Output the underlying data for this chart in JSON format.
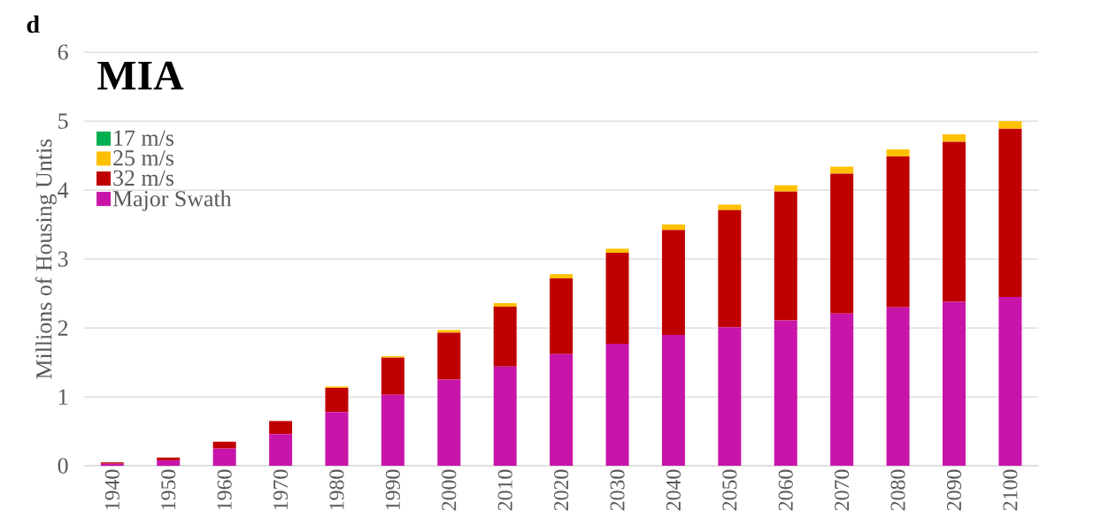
{
  "chart_data": {
    "type": "bar",
    "title": "MIA",
    "ylabel": "Millions of Housing Untis",
    "annotations": [
      "d"
    ],
    "categories": [
      "1940",
      "1950",
      "1960",
      "1970",
      "1980",
      "1990",
      "2000",
      "2010",
      "2020",
      "2030",
      "2040",
      "2050",
      "2060",
      "2070",
      "2080",
      "2090",
      "2100"
    ],
    "stacked": true,
    "series": [
      {
        "name": "Major Swath",
        "color": "#c814a8",
        "values": [
          0.03,
          0.08,
          0.25,
          0.46,
          0.78,
          1.03,
          1.25,
          1.44,
          1.62,
          1.77,
          1.9,
          2.01,
          2.11,
          2.21,
          2.3,
          2.38,
          2.45
        ]
      },
      {
        "name": "32 m/s",
        "color": "#c00000",
        "values": [
          0.02,
          0.04,
          0.1,
          0.19,
          0.35,
          0.54,
          0.68,
          0.87,
          1.1,
          1.32,
          1.52,
          1.7,
          1.87,
          2.03,
          2.19,
          2.32,
          2.44
        ]
      },
      {
        "name": "25 m/s",
        "color": "#ffc000",
        "values": [
          0,
          0,
          0,
          0,
          0.02,
          0.02,
          0.04,
          0.05,
          0.06,
          0.06,
          0.08,
          0.08,
          0.09,
          0.1,
          0.1,
          0.11,
          0.11
        ]
      },
      {
        "name": "17 m/s",
        "color": "#00b050",
        "values": [
          0,
          0,
          0,
          0,
          0,
          0,
          0,
          0,
          0,
          0,
          0,
          0,
          0,
          0,
          0,
          0,
          0
        ]
      }
    ],
    "ylim": [
      0,
      6
    ],
    "yticks": [
      0,
      1,
      2,
      3,
      4,
      5,
      6
    ],
    "grid": "y",
    "legend": "top left"
  }
}
